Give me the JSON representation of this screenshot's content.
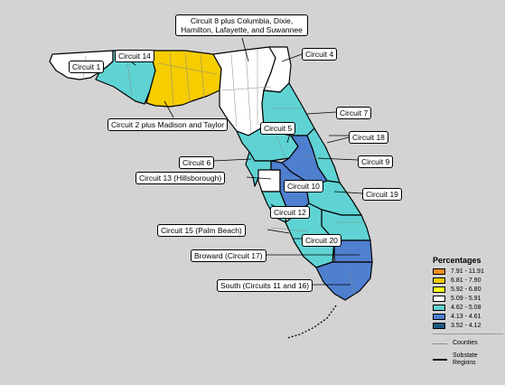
{
  "map": {
    "colors": {
      "yellow": "#f5cd00",
      "cyan": "#5fd3d3",
      "mid_blue": "#4f7fcf",
      "white": "#ffffff",
      "background": "#d3d3d3"
    }
  },
  "callouts": [
    {
      "id": "circuit-1",
      "text": "Circuit 1"
    },
    {
      "id": "circuit-14",
      "text": "Circuit 14"
    },
    {
      "id": "circuit-8",
      "text": "Circuit 8 plus Columbia, Dixie,\nHamilton, Lafayette, and Suwannee"
    },
    {
      "id": "circuit-4",
      "text": "Circuit 4"
    },
    {
      "id": "circuit-7",
      "text": "Circuit 7"
    },
    {
      "id": "circuit-2",
      "text": "Circuit 2 plus Madison and Taylor"
    },
    {
      "id": "circuit-5",
      "text": "Circuit 5"
    },
    {
      "id": "circuit-18",
      "text": "Circuit 18"
    },
    {
      "id": "circuit-9",
      "text": "Circuit 9"
    },
    {
      "id": "circuit-6",
      "text": "Circuit 6"
    },
    {
      "id": "circuit-13",
      "text": "Circuit 13 (Hillsborough)"
    },
    {
      "id": "circuit-10",
      "text": "Circuit 10"
    },
    {
      "id": "circuit-19",
      "text": "Circuit 19"
    },
    {
      "id": "circuit-12",
      "text": "Circuit 12"
    },
    {
      "id": "circuit-15",
      "text": "Circuit 15 (Palm Beach)"
    },
    {
      "id": "circuit-20",
      "text": "Circuit 20"
    },
    {
      "id": "circuit-17",
      "text": "Broward (Circuit 17)"
    },
    {
      "id": "circuit-south",
      "text": "South (Circuits 11 and 16)"
    }
  ],
  "legend": {
    "title": "Percentages",
    "items": [
      {
        "label": "7.91 - 11.91",
        "color": "#f08c1e"
      },
      {
        "label": "6.81 - 7.90",
        "color": "#f5cd00"
      },
      {
        "label": "5.92 - 6.80",
        "color": "#ffff1e"
      },
      {
        "label": "5.09 - 5.91",
        "color": "#ffffff"
      },
      {
        "label": "4.62 - 5.08",
        "color": "#5fd3d3"
      },
      {
        "label": "4.13 - 4.61",
        "color": "#4f7fcf"
      },
      {
        "label": "3.52 - 4.12",
        "color": "#1e5a82"
      }
    ],
    "counties_label": "Counties",
    "regions_label": "Substate\nRegions"
  }
}
